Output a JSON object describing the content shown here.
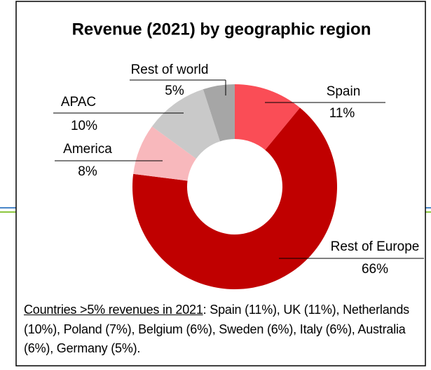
{
  "chart_data": {
    "type": "donut",
    "title": "Revenue (2021) by geographic region",
    "categories": [
      "Spain",
      "Rest of Europe",
      "America",
      "APAC",
      "Rest of world"
    ],
    "values": [
      11,
      66,
      8,
      10,
      5
    ],
    "value_labels": [
      "11%",
      "66%",
      "8%",
      "10%",
      "5%"
    ],
    "colors": [
      "#fa4d56",
      "#c00000",
      "#f8b8bc",
      "#c9c9c9",
      "#a6a6a6"
    ]
  },
  "note": {
    "label": "Countries >5% revenues in 2021",
    "text": ": Spain (11%), UK (11%), Netherlands (10%), Poland (7%), Belgium (6%), Sweden (6%), Italy (6%), Australia (6%), Germany (5%)."
  }
}
